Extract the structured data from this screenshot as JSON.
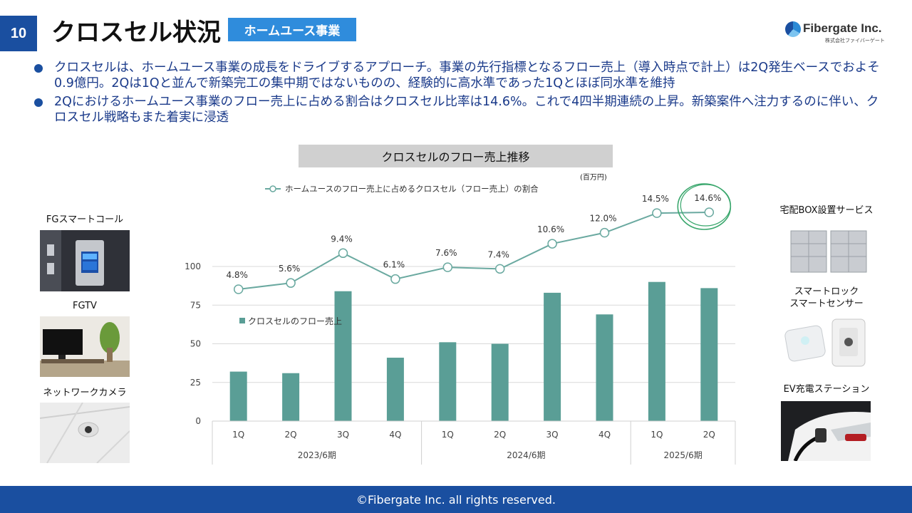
{
  "header": {
    "page_number": "10",
    "title": "クロスセル状況",
    "tag": "ホームユース事業",
    "logo_name": "Fibergate Inc.",
    "logo_sub": "株式会社ファイバーゲート"
  },
  "bullets": [
    "クロスセルは、ホームユース事業の成長をドライブするアプローチ。事業の先行指標となるフロー売上（導入時点で計上）は2Q発生ベースでおよそ0.9億円。2Qは1Qと並んで新築完工の集中期ではないものの、経験的に高水準であった1Qとほぼ同水準を維持",
    "2Qにおけるホームユース事業のフロー売上に占める割合はクロスセル比率は14.6%。これで4四半期連続の上昇。新築案件へ注力するのに伴い、クロスセル戦略もまた着実に浸透"
  ],
  "left_products": [
    "FGスマートコール",
    "FGTV",
    "ネットワークカメラ"
  ],
  "right_products": [
    "宅配BOX設置サービス",
    "スマートロック\nスマートセンサー",
    "EV充電ステーション"
  ],
  "footer": "©Fibergate Inc. all rights reserved.",
  "colors": {
    "brand": "#1a4fa0",
    "tag": "#2f8cdc",
    "bar": "#5a9e96",
    "line": "#6aa9a0",
    "highlight": "#3aa76d"
  },
  "chart_data": {
    "type": "bar",
    "title": "クロスセルのフロー売上推移",
    "unit": "(百万円)",
    "categories": [
      "1Q",
      "2Q",
      "3Q",
      "4Q",
      "1Q",
      "2Q",
      "3Q",
      "4Q",
      "1Q",
      "2Q"
    ],
    "groups": [
      {
        "label": "2023/6期",
        "count": 4
      },
      {
        "label": "2024/6期",
        "count": 4
      },
      {
        "label": "2025/6期",
        "count": 2
      }
    ],
    "ylim": [
      0,
      100
    ],
    "yticks": [
      0,
      25,
      50,
      75,
      100
    ],
    "series": [
      {
        "name": "クロスセルのフロー売上",
        "type": "bar",
        "values": [
          32,
          31,
          84,
          41,
          51,
          50,
          83,
          69,
          90,
          86
        ]
      },
      {
        "name": "ホームユースのフロー売上に占めるクロスセル（フロー売上）の割合",
        "type": "line",
        "values": [
          4.8,
          5.6,
          9.4,
          6.1,
          7.6,
          7.4,
          10.6,
          12.0,
          14.5,
          14.6
        ],
        "labels": [
          "4.8%",
          "5.6%",
          "9.4%",
          "6.1%",
          "7.6%",
          "7.4%",
          "10.6%",
          "12.0%",
          "14.5%",
          "14.6%"
        ]
      }
    ],
    "highlight_index": 9
  }
}
